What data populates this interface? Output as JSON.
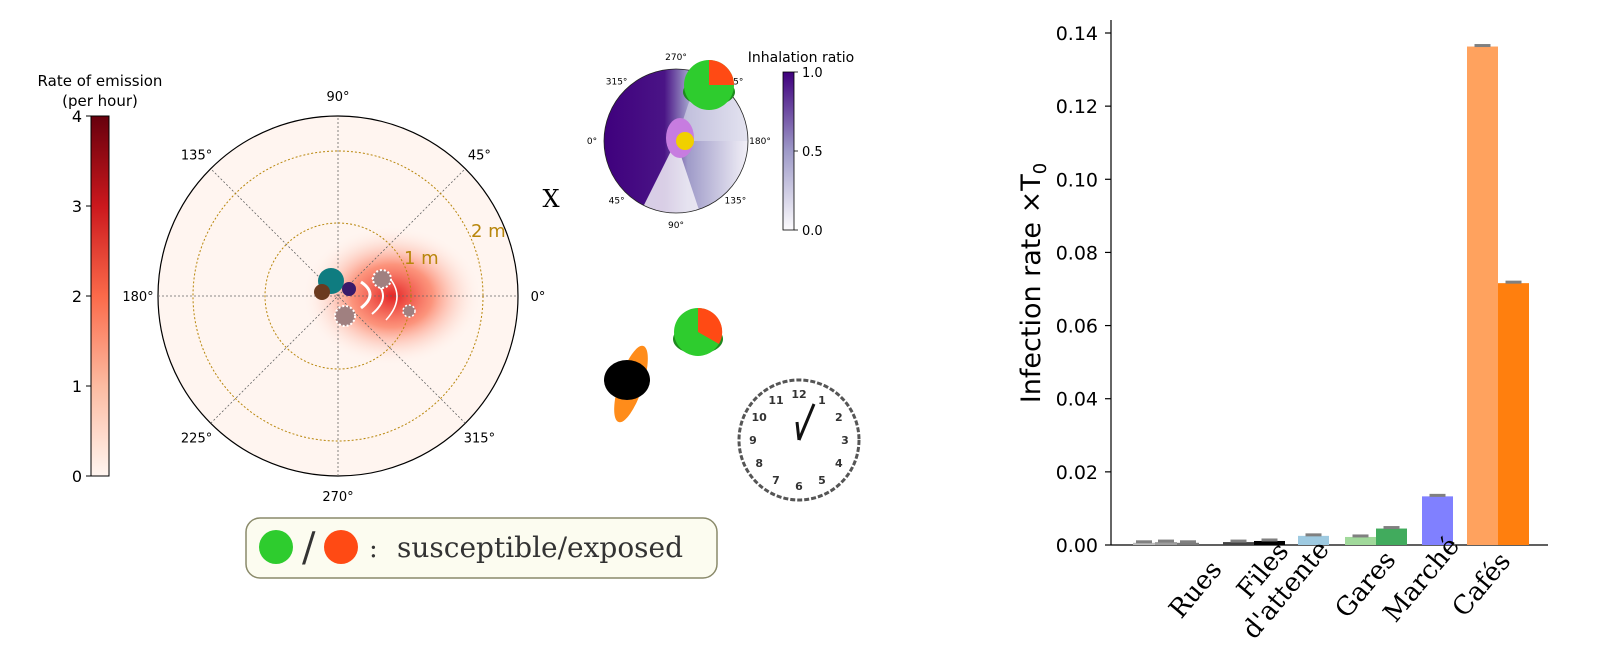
{
  "colorbar_emission": {
    "title_line1": "Rate of emission",
    "title_line2": "(per hour)",
    "ticks": [
      "0",
      "1",
      "2",
      "3",
      "4"
    ],
    "range": [
      0,
      4
    ]
  },
  "polar_main": {
    "angle_labels": [
      "0°",
      "45°",
      "90°",
      "135°",
      "180°",
      "225°",
      "270°",
      "315°"
    ],
    "radius_labels": [
      "1 m",
      "2 m"
    ],
    "ring_color": "#b8860b"
  },
  "polar_inset": {
    "title": "Inhalation ratio",
    "angle_labels": [
      "270°",
      "315°",
      "0°",
      "45°",
      "90°",
      "135°",
      "180°",
      "45°"
    ],
    "colorbar_ticks": [
      "0.0",
      "0.5",
      "1.0"
    ]
  },
  "cross_symbol": "X",
  "legend": {
    "text": "susceptible/exposed",
    "slash": "/",
    "colon": ":",
    "susceptible_color": "#2ecc2e",
    "exposed_color": "#ff4a14"
  },
  "clock": {
    "numbers": [
      "12",
      "1",
      "2",
      "3",
      "4",
      "5",
      "6",
      "7",
      "8",
      "9",
      "10",
      "11"
    ]
  },
  "chart_data": {
    "type": "bar",
    "title": "",
    "xlabel": "",
    "ylabel": "Infection rate ×T",
    "ylabel_sub": "0",
    "ylim": [
      0,
      0.14
    ],
    "yticks": [
      "0.00",
      "0.02",
      "0.04",
      "0.06",
      "0.08",
      "0.10",
      "0.12",
      "0.14"
    ],
    "categories": [
      "Rues",
      "Files\nd'attente",
      "Gares",
      "Marché",
      "Cafés"
    ],
    "category_lines": [
      [
        "Rues"
      ],
      [
        "Files",
        "d'attente"
      ],
      [
        "Gares"
      ],
      [
        "Marché"
      ],
      [
        "Cafés"
      ]
    ],
    "bars": [
      {
        "category": "Rues",
        "values": [
          0.0006,
          0.0008,
          0.0006
        ],
        "colors": [
          "#bdbdbd",
          "#9e9e9e",
          "#7a7a7a"
        ]
      },
      {
        "category": "Files\nd'attente",
        "values": [
          0.0008,
          0.0011
        ],
        "colors": [
          "#444444",
          "#000000"
        ]
      },
      {
        "category": "Gares",
        "values": [
          0.0025
        ],
        "colors": [
          "#9ecae1"
        ]
      },
      {
        "category": "Gares",
        "values": [
          0.0022,
          0.0045
        ],
        "colors": [
          "#a1d99b",
          "#41ab5d"
        ]
      },
      {
        "category": "Marché",
        "values": [
          0.0133
        ],
        "colors": [
          "#8080ff"
        ]
      },
      {
        "category": "Cafés",
        "values": [
          0.1363,
          0.0716
        ],
        "colors": [
          "#ffa25e",
          "#ff7f0e"
        ]
      }
    ]
  }
}
